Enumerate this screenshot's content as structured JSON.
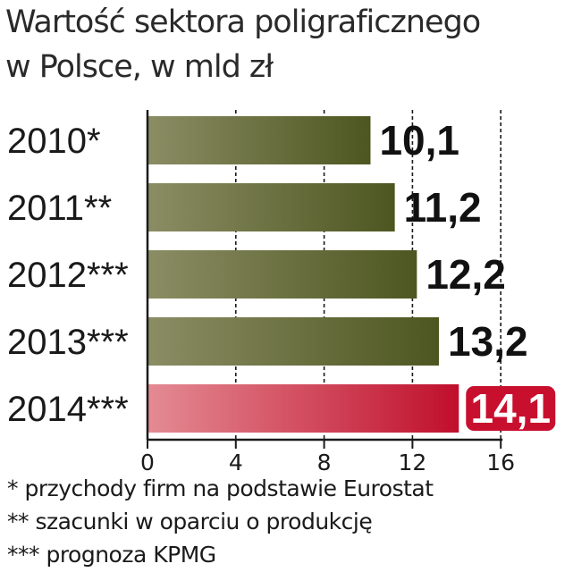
{
  "title_lines": [
    "Wartość sektora poligraficznego",
    "w Polsce, w mld zł"
  ],
  "chart_data": {
    "type": "bar",
    "orientation": "horizontal",
    "categories": [
      "2010*",
      "2011**",
      "2012***",
      "2013***",
      "2014***"
    ],
    "values": [
      10.1,
      11.2,
      12.2,
      13.2,
      14.1
    ],
    "value_labels": [
      "10,1",
      "11,2",
      "12,2",
      "13,2",
      "14,1"
    ],
    "xlim": [
      0,
      16
    ],
    "xticks": [
      0,
      4,
      8,
      12,
      16
    ],
    "xtick_labels": [
      "0",
      "4",
      "8",
      "12",
      "16"
    ],
    "grid": "vertical dashed",
    "highlight_index": 4,
    "colors": {
      "bar": "#5a6329",
      "highlight": "#c8102e"
    }
  },
  "footnotes": [
    "* przychody firm na podstawie Eurostat",
    "** szacunki w oparciu o produkcję",
    "*** prognoza KPMG"
  ]
}
